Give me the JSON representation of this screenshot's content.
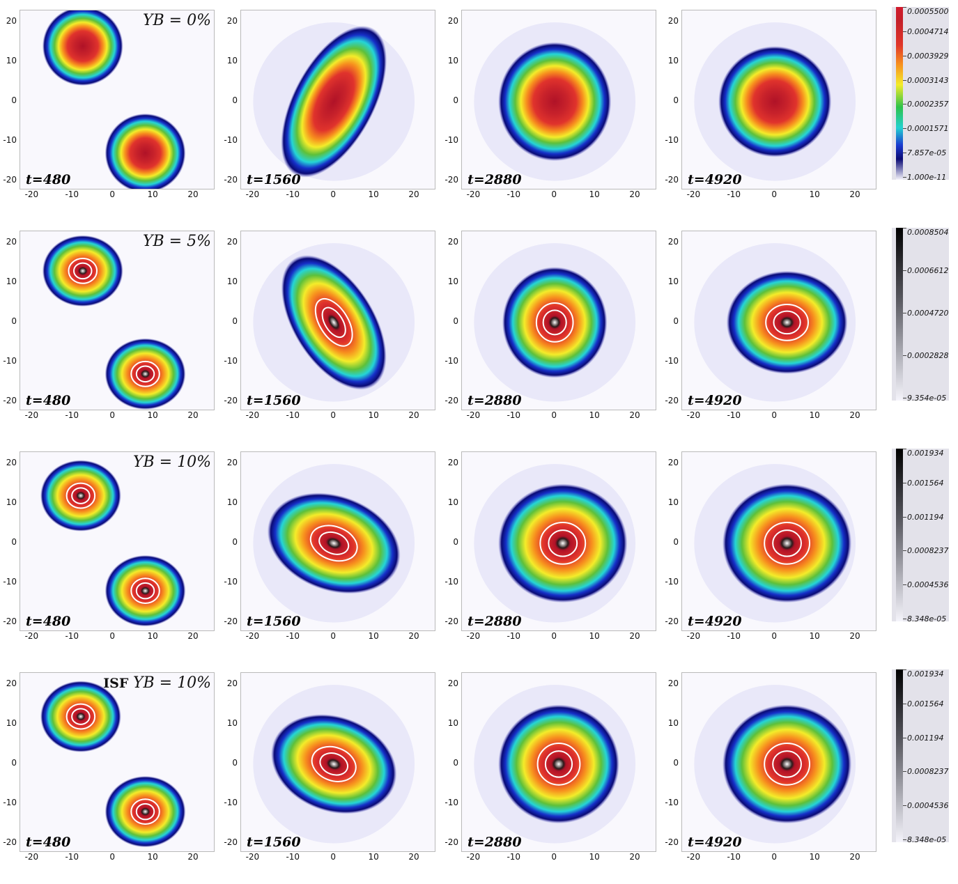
{
  "figure": {
    "rows": [
      {
        "yb_label": "Y_B = 0%",
        "yb_prefix": "",
        "yb_text": "YB = 0%",
        "colorbar": {
          "type": "rainbow",
          "labels": [
            "0.0005500",
            "0.0004714",
            "0.0003929",
            "0.0003143",
            "0.0002357",
            "0.0001571",
            "7.857e-05",
            "1.000e-11"
          ]
        }
      },
      {
        "yb_label": "Y_B = 5%",
        "yb_prefix": "",
        "yb_text": "YB = 5%",
        "colorbar": {
          "type": "gray",
          "labels": [
            "0.0008504",
            "0.0006612",
            "0.0004720",
            "0.0002828",
            "9.354e-05"
          ]
        }
      },
      {
        "yb_label": "Y_B = 10%",
        "yb_prefix": "",
        "yb_text": "YB = 10%",
        "colorbar": {
          "type": "gray",
          "labels": [
            "0.001934",
            "0.001564",
            "0.001194",
            "0.0008237",
            "0.0004536",
            "8.348e-05"
          ]
        }
      },
      {
        "yb_label": "ISF Y_B = 10%",
        "yb_prefix": "ISF",
        "yb_text": "YB = 10%",
        "colorbar": {
          "type": "gray",
          "labels": [
            "0.001934",
            "0.001564",
            "0.001194",
            "0.0008237",
            "0.0004536",
            "8.348e-05"
          ]
        }
      }
    ],
    "times": [
      "t=480",
      "t=1560",
      "t=2880",
      "t=4920"
    ]
  },
  "chart_data": {
    "type": "heatmap",
    "x_ticks": [
      "-20",
      "-10",
      "0",
      "10",
      "20"
    ],
    "y_ticks": [
      "20",
      "10",
      "0",
      "-10",
      "-20"
    ],
    "xlim": [
      -23,
      25
    ],
    "ylim": [
      -22,
      23
    ],
    "colors": {
      "dark_red": "#b01227",
      "red": "#e0332c",
      "orange": "#f78f1e",
      "yellow": "#f4ec2a",
      "green": "#5ec03a",
      "cyan": "#25d5d6",
      "blue": "#1630c8",
      "navy": "#0a0a74",
      "background": "#f9f8fd"
    },
    "panels": [
      [
        {
          "time": 480,
          "blobs": [
            {
              "x": -7.5,
              "y": 14,
              "r": 10,
              "ry": 10
            },
            {
              "x": 8,
              "y": -13,
              "r": 10,
              "ry": 10
            }
          ]
        },
        {
          "time": 1560,
          "blobs": [
            {
              "x": 0,
              "y": 0,
              "r": 10,
              "ry": 21,
              "rot": 28
            }
          ]
        },
        {
          "time": 2880,
          "blobs": [
            {
              "x": 0,
              "y": 0,
              "r": 14,
              "ry": 15
            }
          ]
        },
        {
          "time": 4920,
          "blobs": [
            {
              "x": 0,
              "y": 0,
              "r": 14,
              "ry": 14
            }
          ]
        }
      ],
      [
        {
          "time": 480,
          "blobs": [
            {
              "x": -7.5,
              "y": 13,
              "r": 10,
              "ry": 9
            },
            {
              "x": 8,
              "y": -13,
              "r": 10,
              "ry": 9
            }
          ]
        },
        {
          "time": 1560,
          "blobs": [
            {
              "x": 0,
              "y": 0,
              "r": 10,
              "ry": 19,
              "rot": -32
            }
          ]
        },
        {
          "time": 2880,
          "blobs": [
            {
              "x": 0,
              "y": 0,
              "r": 13,
              "ry": 14
            }
          ]
        },
        {
          "time": 4920,
          "blobs": [
            {
              "x": 3,
              "y": 0,
              "r": 15,
              "ry": 13
            }
          ]
        }
      ],
      [
        {
          "time": 480,
          "blobs": [
            {
              "x": -8,
              "y": 12,
              "r": 10,
              "ry": 9
            },
            {
              "x": 8,
              "y": -12,
              "r": 10,
              "ry": 9
            }
          ]
        },
        {
          "time": 1560,
          "blobs": [
            {
              "x": 0,
              "y": 0,
              "r": 17,
              "ry": 12,
              "rot": 20
            }
          ]
        },
        {
          "time": 2880,
          "blobs": [
            {
              "x": 2,
              "y": 0,
              "r": 16,
              "ry": 15
            }
          ]
        },
        {
          "time": 4920,
          "blobs": [
            {
              "x": 3,
              "y": 0,
              "r": 16,
              "ry": 15
            }
          ]
        }
      ],
      [
        {
          "time": 480,
          "blobs": [
            {
              "x": -8,
              "y": 12,
              "r": 10,
              "ry": 9
            },
            {
              "x": 8,
              "y": -12,
              "r": 10,
              "ry": 9
            }
          ]
        },
        {
          "time": 1560,
          "blobs": [
            {
              "x": 0,
              "y": 0,
              "r": 16,
              "ry": 12,
              "rot": 20
            }
          ]
        },
        {
          "time": 2880,
          "blobs": [
            {
              "x": 1,
              "y": 0,
              "r": 15,
              "ry": 15
            }
          ]
        },
        {
          "time": 4920,
          "blobs": [
            {
              "x": 3,
              "y": 0,
              "r": 16,
              "ry": 15
            }
          ]
        }
      ]
    ]
  }
}
